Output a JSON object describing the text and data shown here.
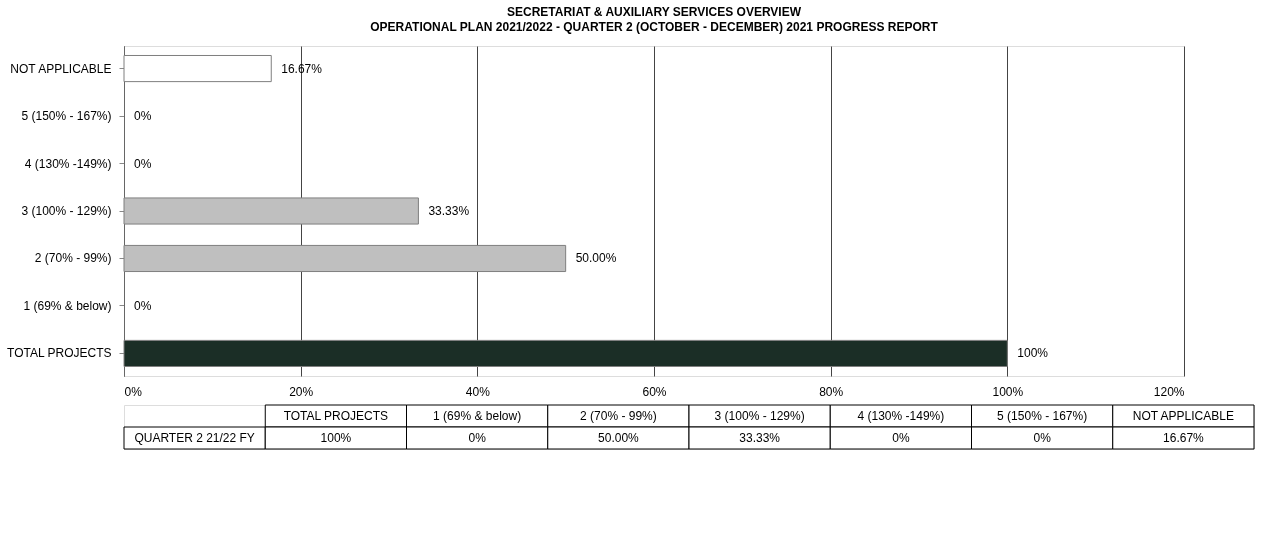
{
  "chart_data": {
    "type": "bar",
    "orientation": "horizontal",
    "title": "SECRETARIAT & AUXILIARY SERVICES OVERVIEW",
    "subtitle": "OPERATIONAL PLAN 2021/2022 - QUARTER 2 (OCTOBER - DECEMBER) 2021 PROGRESS REPORT",
    "categories": [
      "NOT APPLICABLE",
      "5 (150% - 167%)",
      "4 (130% -149%)",
      "3 (100% - 129%)",
      "2 (70% - 99%)",
      "1 (69% & below)",
      "TOTAL PROJECTS"
    ],
    "values": [
      16.67,
      0,
      0,
      33.33,
      50.0,
      0,
      100
    ],
    "colors": [
      "#ffffff",
      "#bfbfbf",
      "#bfbfbf",
      "#bfbfbf",
      "#bfbfbf",
      "#bfbfbf",
      "#1b2e26"
    ],
    "value_labels": [
      "16.67%",
      "0%",
      "0%",
      "33.33%",
      "50.00%",
      "0%",
      "100%"
    ],
    "xlim": [
      0,
      120
    ],
    "xticks": [
      {
        "value": 0,
        "label": "0%"
      },
      {
        "value": 20,
        "label": "20%"
      },
      {
        "value": 40,
        "label": "40%"
      },
      {
        "value": 60,
        "label": "60%"
      },
      {
        "value": 80,
        "label": "80%"
      },
      {
        "value": 100,
        "label": "100%"
      },
      {
        "value": 120,
        "label": "120%"
      }
    ],
    "grid": "x",
    "annotations": [
      "QUARTER 2 21/22 FY"
    ]
  }
}
